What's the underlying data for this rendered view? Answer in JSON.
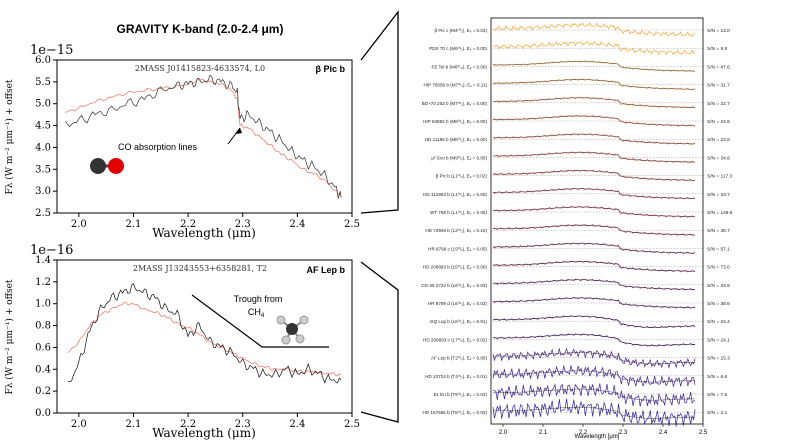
{
  "figure": {
    "title": "GRAVITY K-band (2.0-2.4 μm)"
  },
  "chart_data": [
    {
      "type": "line",
      "panel": "top-left",
      "title": "2MASS J01415823-4633574, L0",
      "label": "β Pic b",
      "exponent": "1e−15",
      "xlabel": "Wavelength (μm)",
      "ylabel": "Fλ (W m⁻² μm⁻¹) + offset",
      "xlim": [
        1.96,
        2.5
      ],
      "ylim": [
        2.5,
        6.0
      ],
      "xticks": [
        "2.0",
        "2.1",
        "2.2",
        "2.3",
        "2.4",
        "2.5"
      ],
      "yticks": [
        "2.5",
        "3.0",
        "3.5",
        "4.0",
        "4.5",
        "5.0",
        "5.5",
        "6.0"
      ],
      "annotation": "CO absorption lines",
      "series": [
        {
          "name": "β Pic b",
          "color": "#333333",
          "x": [
            1.975,
            2.0,
            2.03,
            2.06,
            2.09,
            2.12,
            2.15,
            2.18,
            2.2,
            2.22,
            2.24,
            2.26,
            2.28,
            2.29,
            2.295,
            2.31,
            2.33,
            2.35,
            2.37,
            2.39,
            2.41,
            2.43,
            2.45,
            2.47,
            2.48
          ],
          "y": [
            4.5,
            4.6,
            4.75,
            4.85,
            5.0,
            5.1,
            5.3,
            5.4,
            5.45,
            5.5,
            5.55,
            5.5,
            5.4,
            5.25,
            4.65,
            4.75,
            4.55,
            4.35,
            4.15,
            3.9,
            3.7,
            3.55,
            3.35,
            3.05,
            2.85
          ]
        },
        {
          "name": "2MASS J01415823-4633574",
          "color": "#f08070",
          "x": [
            1.975,
            2.0,
            2.03,
            2.06,
            2.09,
            2.12,
            2.15,
            2.18,
            2.2,
            2.22,
            2.24,
            2.26,
            2.28,
            2.29,
            2.295,
            2.31,
            2.33,
            2.35,
            2.37,
            2.39,
            2.41,
            2.43,
            2.45,
            2.47,
            2.48
          ],
          "y": [
            4.8,
            4.9,
            5.05,
            5.15,
            5.25,
            5.3,
            5.35,
            5.4,
            5.45,
            5.55,
            5.5,
            5.45,
            5.3,
            5.1,
            4.5,
            4.45,
            4.25,
            4.05,
            3.85,
            3.7,
            3.5,
            3.4,
            3.25,
            3.0,
            2.9
          ]
        }
      ]
    },
    {
      "type": "line",
      "panel": "bottom-left",
      "title": "2MASS J13243553+6358281, T2",
      "label": "AF Lep b",
      "exponent": "1e−16",
      "xlabel": "Wavelength (μm)",
      "ylabel": "Fλ (W m⁻² μm⁻¹) + offset",
      "xlim": [
        1.96,
        2.5
      ],
      "ylim": [
        0.0,
        1.4
      ],
      "xticks": [
        "2.0",
        "2.1",
        "2.2",
        "2.3",
        "2.4",
        "2.5"
      ],
      "yticks": [
        "0.0",
        "0.2",
        "0.4",
        "0.6",
        "0.8",
        "1.0",
        "1.2",
        "1.4"
      ],
      "annotation": "Trough from",
      "annotation_molecule": "CH",
      "annotation_subscript": "4",
      "series": [
        {
          "name": "AF Lep b",
          "color": "#111111",
          "x": [
            1.98,
            2.0,
            2.02,
            2.04,
            2.06,
            2.08,
            2.1,
            2.12,
            2.14,
            2.16,
            2.18,
            2.2,
            2.22,
            2.24,
            2.26,
            2.28,
            2.3,
            2.32,
            2.34,
            2.36,
            2.38,
            2.4,
            2.42,
            2.44,
            2.46,
            2.48
          ],
          "y": [
            0.25,
            0.45,
            0.75,
            0.95,
            1.05,
            1.1,
            1.15,
            1.1,
            1.05,
            0.95,
            0.9,
            0.7,
            0.8,
            0.65,
            0.6,
            0.55,
            0.45,
            0.4,
            0.35,
            0.35,
            0.4,
            0.35,
            0.4,
            0.35,
            0.3,
            0.3
          ]
        },
        {
          "name": "2MASS J13243553+6358281",
          "color": "#f08070",
          "x": [
            1.98,
            2.0,
            2.02,
            2.04,
            2.06,
            2.08,
            2.1,
            2.12,
            2.14,
            2.16,
            2.18,
            2.2,
            2.22,
            2.24,
            2.26,
            2.28,
            2.3,
            2.32,
            2.34,
            2.36,
            2.38,
            2.4,
            2.42,
            2.44,
            2.46,
            2.48
          ],
          "y": [
            0.55,
            0.65,
            0.8,
            0.9,
            0.95,
            1.0,
            1.0,
            0.95,
            0.92,
            0.88,
            0.82,
            0.78,
            0.72,
            0.65,
            0.6,
            0.55,
            0.5,
            0.45,
            0.42,
            0.4,
            0.4,
            0.38,
            0.38,
            0.37,
            0.36,
            0.35
          ]
        }
      ]
    },
    {
      "type": "line",
      "panel": "right",
      "xlabel": "Wavelength [μm]",
      "xlim": [
        1.97,
        2.5
      ],
      "xticks": [
        "2.0",
        "2.1",
        "2.2",
        "2.3",
        "2.4",
        "2.5"
      ],
      "series": [
        {
          "name": "β Pic c (M4⁰³₂), Eᵥ = 0.03)",
          "snr": "S/N = 13.0",
          "color": "#f2a93b"
        },
        {
          "name": "PDS 70 c (M6⁰¹₁), Eᵥ = 0.00)",
          "snr": "S/N = 9.9",
          "color": "#f2a93b"
        },
        {
          "name": "PZ Tel b (M6⁰¹₀), Eᵥ = 0.00)",
          "snr": "S/N = 47.6",
          "color": "#f29a35"
        },
        {
          "name": "HIP 75056 b (M7⁰¹₁), Eᵥ = 0.11)",
          "snr": "S/N = 31.7",
          "color": "#ee8a34"
        },
        {
          "name": "BD+70 263 b (M7⁰¹₁), Eᵥ = 0.00)",
          "snr": "S/N = 22.7",
          "color": "#e97a35"
        },
        {
          "name": "HIP 64892 b (M8⁰¹₁), Eᵥ = 0.00)",
          "snr": "S/N = 24.6",
          "color": "#e46b37"
        },
        {
          "name": "HD 11155 b (M8⁰¹₁), Eᵥ = 0.00)",
          "snr": "S/N = 23.8",
          "color": "#dd5d3b"
        },
        {
          "name": "μ² Sco b (M9⁰¹₁), Eᵥ = 0.00)",
          "snr": "S/N = 34.8",
          "color": "#d5503f"
        },
        {
          "name": "β Pic b (L1⁰¹₁), Eᵥ = 0.02)",
          "snr": "S/N = 117.3",
          "color": "#cc4544"
        },
        {
          "name": "HD 112863 b (L1⁰¹₁), Eᵥ = 0.00)",
          "snr": "S/N = 33.7",
          "color": "#c13b4a"
        },
        {
          "name": "WT 766 b (L1⁰¹₁), Eᵥ = 0.05)",
          "snr": "S/N = 149.6",
          "color": "#b43350"
        },
        {
          "name": "HD 72946 b (L2⁰¹₁), Eᵥ = 0.10)",
          "snr": "S/N = 35.7",
          "color": "#a62c57"
        },
        {
          "name": "HR 8799 c (L5⁰¹₁), Eᵥ = 0.05)",
          "snr": "S/N = 57.1",
          "color": "#98275e"
        },
        {
          "name": "HD 206893 b (L5⁰¹₁), Eᵥ = 0.00)",
          "snr": "S/N = 73.0",
          "color": "#8a2366"
        },
        {
          "name": "CD-35 2722 b (L6⁰¹₁), Eᵥ = 0.03)",
          "snr": "S/N = 33.6",
          "color": "#7d216e"
        },
        {
          "name": "HR 8799 d (L6⁰¹₁), Eᵥ = 0.02)",
          "snr": "S/N = 38.6",
          "color": "#6f1f76"
        },
        {
          "name": "GQ Lup b (L6⁰¹₁), Eᵥ = 0.01)",
          "snr": "S/N = 24.4",
          "color": "#621e7d"
        },
        {
          "name": "HD 206893 c (L7⁰¹₁), Eᵥ = 0.02)",
          "snr": "S/N = 24.1",
          "color": "#571f84"
        },
        {
          "name": "AF Lep b (T2⁰¹₁), Eᵥ = 0.00)",
          "snr": "S/N = 15.3",
          "color": "#4d1f8a"
        },
        {
          "name": "HD 13724 b (T4⁰¹₁), Eᵥ = 0.01)",
          "snr": "S/N = 6.6",
          "color": "#44208f"
        },
        {
          "name": "51 Eri b (T5⁰¹₁), Eᵥ = 0.04)",
          "snr": "S/N = 7.6",
          "color": "#3b2194"
        },
        {
          "name": "HD 167665 b (T6⁰¹₁), Eᵥ = 0.03)",
          "snr": "S/N = 2.1",
          "color": "#33229a"
        }
      ]
    }
  ]
}
